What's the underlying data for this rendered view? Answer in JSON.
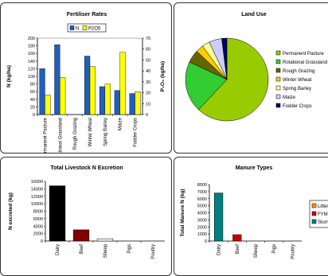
{
  "chart_data": [
    {
      "type": "bar",
      "title": "Fertiliser Rates",
      "categories": [
        "Permanent Pasture",
        "Rotational Grassland",
        "Rough Grazing",
        "Winter Wheat",
        "Spring Barley",
        "Maize",
        "Fodder Crops"
      ],
      "series": [
        {
          "name": "N",
          "color": "#1f5fbf",
          "values": [
            120,
            183,
            0,
            153,
            73,
            63,
            55
          ]
        },
        {
          "name": "P2O5",
          "color": "#ffff00",
          "values": [
            18,
            34,
            0,
            44,
            28,
            57,
            21
          ]
        }
      ],
      "ylabel": "N (kg/ha)",
      "y2label": "P₂O₅ (kg/ha)",
      "ylim": [
        0,
        200
      ],
      "yticks": [
        0,
        20,
        40,
        60,
        80,
        100,
        120,
        140,
        160,
        180,
        200
      ],
      "y2lim": [
        0,
        70
      ],
      "y2ticks": [
        0,
        10,
        20,
        30,
        40,
        50,
        60,
        70
      ],
      "legend": "top"
    },
    {
      "type": "pie",
      "title": "Land Use",
      "labels": [
        "Permanent Pasture",
        "Rotational Grassland",
        "Rough Grazing",
        "Winter Wheat",
        "Spring Barley",
        "Maize",
        "Fodder Crops"
      ],
      "values": [
        62,
        20,
        5,
        3,
        3,
        5,
        2
      ],
      "colors": [
        "#99cc00",
        "#33cc33",
        "#666600",
        "#ffcc00",
        "#ffff99",
        "#ccccff",
        "#000066"
      ],
      "legend": "right"
    },
    {
      "type": "bar",
      "title": "Total Livestock N Excretion",
      "categories": [
        "Dairy",
        "Beef",
        "Sheep",
        "Pigs",
        "Poultry"
      ],
      "values": [
        14800,
        3000,
        600,
        0,
        0
      ],
      "colors": [
        "#000000",
        "#800000",
        "#ffffff",
        "#ffffff",
        "#ffffff"
      ],
      "ylabel": "N excreted (kg)",
      "ylim": [
        0,
        16000
      ],
      "yticks": [
        0,
        2000,
        4000,
        6000,
        8000,
        10000,
        12000,
        14000,
        16000
      ]
    },
    {
      "type": "bar",
      "title": "Manure Types",
      "categories": [
        "Dairy",
        "Beef",
        "Sheep",
        "Pigs",
        "Poultry"
      ],
      "series": [
        {
          "name": "Litter",
          "color": "#ff9900",
          "values": [
            0,
            0,
            0,
            0,
            0
          ]
        },
        {
          "name": "FYM",
          "color": "#cc0000",
          "values": [
            0,
            900,
            0,
            0,
            0
          ]
        },
        {
          "name": "Slurry",
          "color": "#008080",
          "values": [
            6800,
            0,
            0,
            0,
            0
          ]
        }
      ],
      "ylabel": "Total Manure N (kg)",
      "ylim": [
        0,
        8000
      ],
      "yticks": [
        0,
        1000,
        2000,
        3000,
        4000,
        5000,
        6000,
        7000,
        8000
      ],
      "legend": "right"
    }
  ]
}
